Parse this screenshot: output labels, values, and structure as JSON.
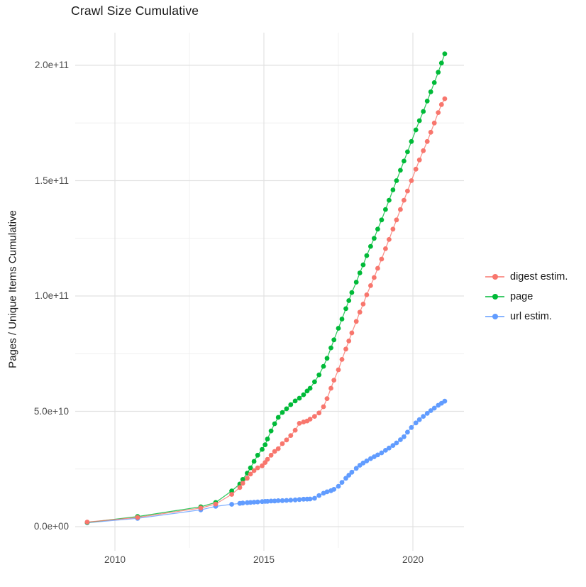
{
  "title": "Crawl Size Cumulative",
  "axes": {
    "y_title": "Pages / Unique Items Cumulative"
  },
  "legend": {
    "items": [
      {
        "label": "digest estim.",
        "color": "#F8766D"
      },
      {
        "label": "page",
        "color": "#00BA38"
      },
      {
        "label": "url estim.",
        "color": "#619CFF"
      }
    ]
  },
  "colors": {
    "grid_major": "#e2e2e2",
    "grid_minor": "#efefef",
    "tick_text": "#4d4d4d",
    "title_text": "#191919"
  },
  "chart_data": {
    "type": "scatter",
    "title": "Crawl Size Cumulative",
    "xlabel": "",
    "ylabel": "Pages / Unique Items Cumulative",
    "legend_position": "right",
    "grid": true,
    "value_unit": "items, stored as billions (1 = 1e9)",
    "x_domain": [
      2008.67,
      2021.71
    ],
    "y_domain_billions": [
      -9.2,
      214.2
    ],
    "x_ticks": [
      {
        "label": "2010",
        "year": 2010
      },
      {
        "label": "2015",
        "year": 2015
      },
      {
        "label": "2020",
        "year": 2020
      }
    ],
    "x_minor_ticks": [
      2012.5,
      2017.5
    ],
    "y_ticks": [
      {
        "label": "0.0e+00",
        "value": 0
      },
      {
        "label": "5.0e+10",
        "value": 50
      },
      {
        "label": "1.0e+11",
        "value": 100
      },
      {
        "label": "1.5e+11",
        "value": 150
      },
      {
        "label": "2.0e+11",
        "value": 200
      }
    ],
    "y_minor_ticks": [
      25,
      75,
      125,
      175
    ],
    "series": [
      {
        "name": "digest estim.",
        "color": "#F8766D",
        "points": [
          [
            2009.07,
            2.0
          ],
          [
            2010.76,
            4.0
          ],
          [
            2012.88,
            8.1
          ],
          [
            2013.38,
            9.8
          ],
          [
            2013.92,
            14.0
          ],
          [
            2014.19,
            17.0
          ],
          [
            2014.29,
            18.8
          ],
          [
            2014.44,
            21.0
          ],
          [
            2014.55,
            22.8
          ],
          [
            2014.67,
            24.3
          ],
          [
            2014.79,
            25.5
          ],
          [
            2014.94,
            26.4
          ],
          [
            2015.04,
            27.8
          ],
          [
            2015.12,
            29.2
          ],
          [
            2015.24,
            31.0
          ],
          [
            2015.36,
            32.6
          ],
          [
            2015.48,
            33.8
          ],
          [
            2015.62,
            36.0
          ],
          [
            2015.76,
            37.6
          ],
          [
            2015.9,
            39.5
          ],
          [
            2016.05,
            41.8
          ],
          [
            2016.19,
            44.8
          ],
          [
            2016.33,
            45.4
          ],
          [
            2016.45,
            45.8
          ],
          [
            2016.55,
            46.6
          ],
          [
            2016.7,
            47.8
          ],
          [
            2016.85,
            49.3
          ],
          [
            2017.0,
            52.0
          ],
          [
            2017.12,
            55.5
          ],
          [
            2017.25,
            60.0
          ],
          [
            2017.35,
            63.5
          ],
          [
            2017.5,
            68.0
          ],
          [
            2017.62,
            72.5
          ],
          [
            2017.75,
            77.0
          ],
          [
            2017.85,
            80.5
          ],
          [
            2017.95,
            84.0
          ],
          [
            2018.1,
            89.0
          ],
          [
            2018.22,
            93.0
          ],
          [
            2018.33,
            96.5
          ],
          [
            2018.45,
            100.5
          ],
          [
            2018.58,
            104.5
          ],
          [
            2018.7,
            108.0
          ],
          [
            2018.82,
            112.0
          ],
          [
            2018.95,
            116.0
          ],
          [
            2019.08,
            120.5
          ],
          [
            2019.2,
            124.5
          ],
          [
            2019.33,
            129.0
          ],
          [
            2019.45,
            133.0
          ],
          [
            2019.58,
            137.5
          ],
          [
            2019.7,
            141.5
          ],
          [
            2019.82,
            145.5
          ],
          [
            2019.95,
            150.0
          ],
          [
            2020.1,
            155.0
          ],
          [
            2020.22,
            159.0
          ],
          [
            2020.35,
            163.0
          ],
          [
            2020.48,
            167.0
          ],
          [
            2020.6,
            171.0
          ],
          [
            2020.72,
            175.0
          ],
          [
            2020.85,
            179.5
          ],
          [
            2020.96,
            183.0
          ],
          [
            2021.07,
            185.5
          ]
        ]
      },
      {
        "name": "page",
        "color": "#00BA38",
        "points": [
          [
            2009.07,
            1.8
          ],
          [
            2010.76,
            4.4
          ],
          [
            2012.88,
            8.6
          ],
          [
            2013.38,
            10.5
          ],
          [
            2013.92,
            15.5
          ],
          [
            2014.19,
            18.5
          ],
          [
            2014.29,
            20.5
          ],
          [
            2014.44,
            23.2
          ],
          [
            2014.55,
            25.5
          ],
          [
            2014.67,
            28.3
          ],
          [
            2014.79,
            31.0
          ],
          [
            2014.94,
            33.5
          ],
          [
            2015.04,
            35.5
          ],
          [
            2015.12,
            38.0
          ],
          [
            2015.24,
            41.5
          ],
          [
            2015.36,
            44.6
          ],
          [
            2015.48,
            47.4
          ],
          [
            2015.62,
            49.5
          ],
          [
            2015.76,
            51.1
          ],
          [
            2015.9,
            52.9
          ],
          [
            2016.05,
            54.5
          ],
          [
            2016.19,
            55.7
          ],
          [
            2016.33,
            57.2
          ],
          [
            2016.45,
            58.8
          ],
          [
            2016.55,
            60.0
          ],
          [
            2016.7,
            62.8
          ],
          [
            2016.85,
            65.8
          ],
          [
            2017.0,
            69.5
          ],
          [
            2017.12,
            73.0
          ],
          [
            2017.25,
            77.5
          ],
          [
            2017.35,
            81.0
          ],
          [
            2017.5,
            86.0
          ],
          [
            2017.62,
            90.0
          ],
          [
            2017.75,
            94.5
          ],
          [
            2017.85,
            98.0
          ],
          [
            2017.95,
            101.5
          ],
          [
            2018.1,
            106.0
          ],
          [
            2018.22,
            110.0
          ],
          [
            2018.33,
            113.5
          ],
          [
            2018.45,
            117.5
          ],
          [
            2018.58,
            121.5
          ],
          [
            2018.7,
            125.0
          ],
          [
            2018.82,
            129.0
          ],
          [
            2018.95,
            133.0
          ],
          [
            2019.08,
            137.5
          ],
          [
            2019.2,
            141.5
          ],
          [
            2019.33,
            146.0
          ],
          [
            2019.45,
            150.0
          ],
          [
            2019.58,
            154.5
          ],
          [
            2019.7,
            158.5
          ],
          [
            2019.82,
            162.5
          ],
          [
            2019.95,
            167.0
          ],
          [
            2020.1,
            172.0
          ],
          [
            2020.22,
            176.0
          ],
          [
            2020.35,
            180.0
          ],
          [
            2020.48,
            184.5
          ],
          [
            2020.6,
            188.5
          ],
          [
            2020.72,
            192.5
          ],
          [
            2020.85,
            197.0
          ],
          [
            2020.96,
            201.0
          ],
          [
            2021.07,
            205.0
          ]
        ]
      },
      {
        "name": "url estim.",
        "color": "#619CFF",
        "points": [
          [
            2009.07,
            1.7
          ],
          [
            2010.76,
            3.6
          ],
          [
            2012.88,
            7.3
          ],
          [
            2013.38,
            8.8
          ],
          [
            2013.92,
            9.7
          ],
          [
            2014.19,
            10.1
          ],
          [
            2014.29,
            10.25
          ],
          [
            2014.44,
            10.4
          ],
          [
            2014.55,
            10.5
          ],
          [
            2014.67,
            10.6
          ],
          [
            2014.79,
            10.7
          ],
          [
            2014.94,
            10.85
          ],
          [
            2015.04,
            10.95
          ],
          [
            2015.12,
            11.0
          ],
          [
            2015.24,
            11.1
          ],
          [
            2015.36,
            11.15
          ],
          [
            2015.48,
            11.25
          ],
          [
            2015.62,
            11.3
          ],
          [
            2015.76,
            11.4
          ],
          [
            2015.9,
            11.5
          ],
          [
            2016.05,
            11.6
          ],
          [
            2016.19,
            11.75
          ],
          [
            2016.33,
            11.9
          ],
          [
            2016.45,
            11.95
          ],
          [
            2016.55,
            12.0
          ],
          [
            2016.7,
            12.3
          ],
          [
            2016.85,
            13.5
          ],
          [
            2017.0,
            14.5
          ],
          [
            2017.12,
            15.1
          ],
          [
            2017.25,
            15.6
          ],
          [
            2017.35,
            16.2
          ],
          [
            2017.5,
            17.5
          ],
          [
            2017.62,
            19.2
          ],
          [
            2017.75,
            21.0
          ],
          [
            2017.85,
            22.3
          ],
          [
            2017.95,
            23.6
          ],
          [
            2018.1,
            25.3
          ],
          [
            2018.22,
            26.6
          ],
          [
            2018.33,
            27.6
          ],
          [
            2018.45,
            28.5
          ],
          [
            2018.58,
            29.5
          ],
          [
            2018.7,
            30.3
          ],
          [
            2018.82,
            31.1
          ],
          [
            2018.95,
            32.0
          ],
          [
            2019.08,
            33.1
          ],
          [
            2019.2,
            34.1
          ],
          [
            2019.33,
            35.2
          ],
          [
            2019.45,
            36.3
          ],
          [
            2019.58,
            37.7
          ],
          [
            2019.7,
            39.0
          ],
          [
            2019.82,
            41.0
          ],
          [
            2019.95,
            43.0
          ],
          [
            2020.1,
            45.0
          ],
          [
            2020.22,
            46.4
          ],
          [
            2020.35,
            47.8
          ],
          [
            2020.48,
            49.1
          ],
          [
            2020.6,
            50.3
          ],
          [
            2020.72,
            51.4
          ],
          [
            2020.85,
            52.6
          ],
          [
            2020.96,
            53.5
          ],
          [
            2021.07,
            54.4
          ]
        ]
      }
    ]
  }
}
